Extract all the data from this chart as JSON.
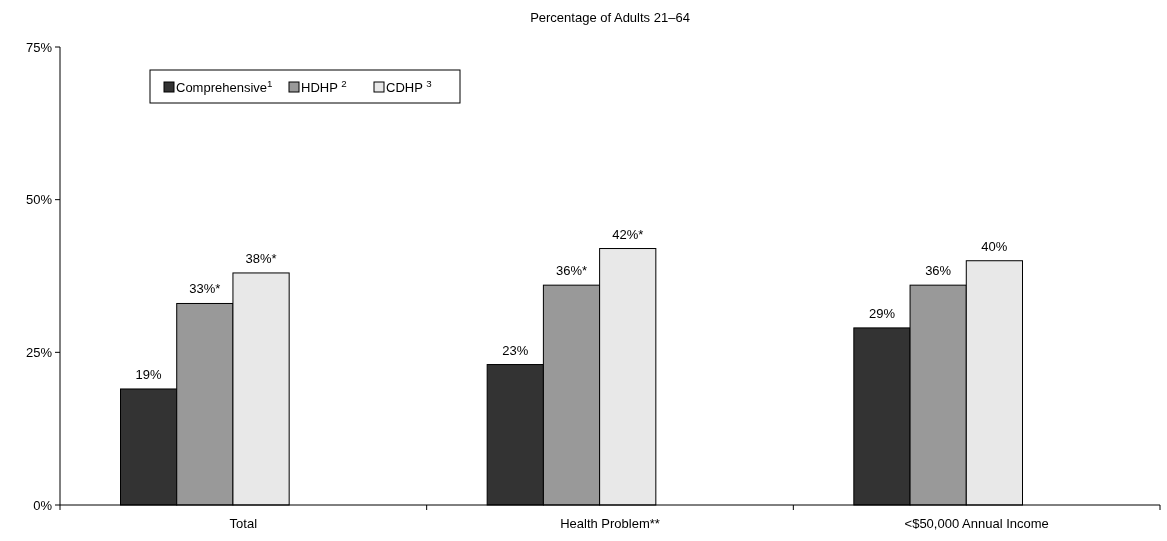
{
  "chart_data": {
    "type": "bar",
    "title": "Percentage of Adults 21–64",
    "categories": [
      "Total",
      "Health Problem**",
      "<$50,000 Annual Income"
    ],
    "series": [
      {
        "name": "Comprehensive$^{1}$",
        "color": "#333333",
        "values": [
          19,
          23,
          29
        ],
        "value_labels": [
          "19%",
          "23%",
          "29%"
        ]
      },
      {
        "name": "HDHP $^{2}$",
        "color": "#999999",
        "values": [
          33,
          36,
          36
        ],
        "value_labels": [
          "33%*",
          "36%*",
          "36%"
        ]
      },
      {
        "name": "CDHP $^{3}$",
        "color": "#e8e8e8",
        "values": [
          38,
          42,
          40
        ],
        "value_labels": [
          "38%*",
          "42%*",
          "40%"
        ]
      }
    ],
    "ylim": [
      0,
      75
    ],
    "yticks": [
      {
        "value": 0,
        "label": "0%"
      },
      {
        "value": 25,
        "label": "25%"
      },
      {
        "value": 50,
        "label": "50%"
      },
      {
        "value": 75,
        "label": "75%"
      }
    ],
    "legend": "top left",
    "grid": false
  }
}
